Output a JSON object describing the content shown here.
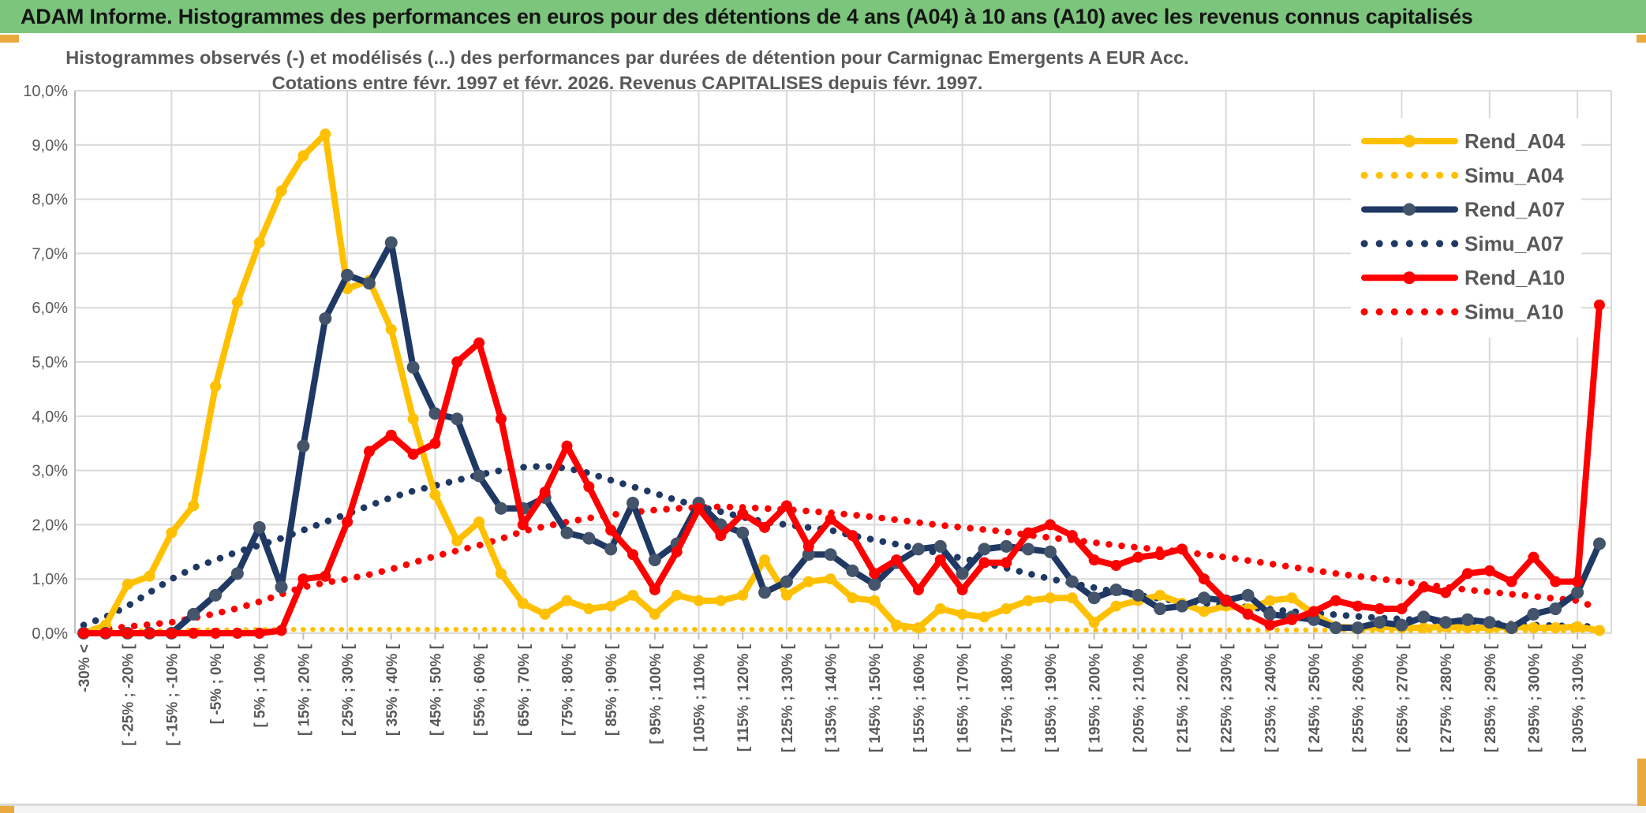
{
  "header": {
    "title": "ADAM Informe. Histogrammes des performances en euros pour des détentions de 4 ans (A04) à 10 ans (A10) avec les revenus connus capitalisés"
  },
  "colors": {
    "titlebar_green": "#7CC57C",
    "gold_accent": "#E9A93C",
    "series_yellow": "#FFC000",
    "series_navy": "#1F3864",
    "navy_marker_gray": "#44546A",
    "series_red": "#FF0000",
    "grid_gray": "#D9D9D9",
    "axis_gray": "#BFBFBF",
    "text_gray": "#595959"
  },
  "chart_data": {
    "type": "line",
    "title_line1": "Histogrammes observés (-) et modélisés (...) des performances par durées de détention pour Carmignac Emergents A EUR Acc.",
    "title_line2": "Cotations entre févr. 1997 et févr. 2026. Revenus CAPITALISES depuis févr. 1997.",
    "grid": "on",
    "legend_position": "top-right",
    "ylim": [
      0,
      10
    ],
    "y_tick_labels": [
      "0,0%",
      "1,0%",
      "2,0%",
      "3,0%",
      "4,0%",
      "5,0%",
      "6,0%",
      "7,0%",
      "8,0%",
      "9,0%",
      "10,0%"
    ],
    "x_bin_width_pct": 5,
    "x_labels_every_2_bins": [
      "-30% <",
      "[ -25% ; -20% [",
      "[ -15% ; -10% [",
      "[ -5% ; 0% [",
      "[ 5% ; 10% [",
      "[ 15% ; 20% [",
      "[ 25% ; 30% [",
      "[ 35% ; 40% [",
      "[ 45% ; 50% [",
      "[ 55% ; 60% [",
      "[ 65% ; 70% [",
      "[ 75% ; 80% [",
      "[ 85% ; 90% [",
      "[ 95% ; 100% [",
      "[ 105% ; 110% [",
      "[ 115% ; 120% [",
      "[ 125% ; 130% [",
      "[ 135% ; 140% [",
      "[ 145% ; 150% [",
      "[ 155% ; 160% [",
      "[ 165% ; 170% [",
      "[ 175% ; 180% [",
      "[ 185% ; 190% [",
      "[ 195% ; 200% [",
      "[ 205% ; 210% [",
      "[ 215% ; 220% [",
      "[ 225% ; 230% [",
      "[ 235% ; 240% [",
      "[ 245% ; 250% [",
      "[ 255% ; 260% [",
      "[ 265% ; 270% [",
      "[ 275% ; 280% [",
      "[ 285% ; 290% [",
      "[ 295% ; 300% [",
      "[ 305% ; 310% ["
    ],
    "n_points": 70,
    "series": [
      {
        "name": "Rend_A04",
        "style": "solid",
        "color": "#FFC000",
        "marker_color": "#FFC000",
        "values": [
          0,
          0.15,
          0.9,
          1.05,
          1.85,
          2.35,
          4.55,
          6.1,
          7.2,
          8.15,
          8.8,
          9.2,
          6.35,
          6.5,
          5.6,
          3.95,
          2.55,
          1.7,
          2.05,
          1.1,
          0.55,
          0.35,
          0.6,
          0.45,
          0.5,
          0.7,
          0.35,
          0.7,
          0.6,
          0.6,
          0.7,
          1.35,
          0.7,
          0.95,
          1.0,
          0.65,
          0.6,
          0.15,
          0.1,
          0.45,
          0.35,
          0.3,
          0.45,
          0.6,
          0.65,
          0.65,
          0.2,
          0.5,
          0.6,
          0.7,
          0.55,
          0.4,
          0.5,
          0.45,
          0.6,
          0.65,
          0.35,
          0.12,
          0.1,
          0.12,
          0.1,
          0.1,
          0.12,
          0.1,
          0.1,
          0.12,
          0.1,
          0.1,
          0.12,
          0.05
        ]
      },
      {
        "name": "Simu_A04",
        "style": "dotted",
        "color": "#FFC000",
        "values": [
          0.02,
          0.03,
          0.04,
          0.05,
          0.05,
          0.06,
          0.06,
          0.06,
          0.07,
          0.07,
          0.07,
          0.07,
          0.07,
          0.07,
          0.07,
          0.07,
          0.07,
          0.07,
          0.07,
          0.07,
          0.07,
          0.07,
          0.07,
          0.07,
          0.07,
          0.07,
          0.07,
          0.07,
          0.07,
          0.07,
          0.07,
          0.07,
          0.07,
          0.07,
          0.07,
          0.07,
          0.07,
          0.07,
          0.07,
          0.07,
          0.07,
          0.07,
          0.07,
          0.07,
          0.07,
          0.06,
          0.06,
          0.06,
          0.06,
          0.06,
          0.06,
          0.06,
          0.06,
          0.06,
          0.06,
          0.06,
          0.06,
          0.06,
          0.05,
          0.05,
          0.05,
          0.05,
          0.05,
          0.05,
          0.05,
          0.05,
          0.05,
          0.05,
          0.05,
          0.05
        ]
      },
      {
        "name": "Rend_A07",
        "style": "solid",
        "color": "#1F3864",
        "marker_color": "#44546A",
        "values": [
          0,
          0,
          0,
          0,
          0,
          0.35,
          0.7,
          1.1,
          1.95,
          0.85,
          3.45,
          5.8,
          6.6,
          6.45,
          7.2,
          4.9,
          4.05,
          3.95,
          2.9,
          2.3,
          2.3,
          2.5,
          1.85,
          1.75,
          1.55,
          2.4,
          1.35,
          1.65,
          2.4,
          2.0,
          1.85,
          0.75,
          0.95,
          1.45,
          1.45,
          1.15,
          0.9,
          1.3,
          1.55,
          1.6,
          1.1,
          1.55,
          1.6,
          1.55,
          1.5,
          0.95,
          0.65,
          0.8,
          0.7,
          0.45,
          0.5,
          0.65,
          0.6,
          0.7,
          0.35,
          0.3,
          0.25,
          0.1,
          0.1,
          0.2,
          0.15,
          0.3,
          0.2,
          0.25,
          0.2,
          0.1,
          0.35,
          0.45,
          0.75,
          1.65
        ]
      },
      {
        "name": "Simu_A07",
        "style": "dotted",
        "color": "#1F3864",
        "values": [
          0.15,
          0.3,
          0.5,
          0.75,
          1.0,
          1.2,
          1.35,
          1.5,
          1.62,
          1.75,
          1.9,
          2.05,
          2.2,
          2.35,
          2.5,
          2.62,
          2.72,
          2.82,
          2.92,
          3.0,
          3.06,
          3.08,
          3.04,
          2.95,
          2.82,
          2.7,
          2.58,
          2.45,
          2.34,
          2.24,
          2.14,
          2.05,
          2.0,
          1.95,
          1.9,
          1.8,
          1.72,
          1.64,
          1.56,
          1.47,
          1.38,
          1.29,
          1.2,
          1.1,
          1.0,
          0.92,
          0.84,
          0.76,
          0.7,
          0.64,
          0.58,
          0.55,
          0.52,
          0.48,
          0.44,
          0.4,
          0.37,
          0.34,
          0.31,
          0.28,
          0.26,
          0.24,
          0.22,
          0.2,
          0.18,
          0.17,
          0.15,
          0.14,
          0.13,
          0.12
        ]
      },
      {
        "name": "Rend_A10",
        "style": "solid",
        "color": "#FF0000",
        "marker_color": "#FF0000",
        "values": [
          0,
          0,
          0,
          0,
          0,
          0,
          0,
          0,
          0,
          0.05,
          1.0,
          1.05,
          2.05,
          3.35,
          3.65,
          3.3,
          3.5,
          5.0,
          5.35,
          3.95,
          2.0,
          2.6,
          3.45,
          2.7,
          1.9,
          1.45,
          0.8,
          1.5,
          2.3,
          1.8,
          2.2,
          1.95,
          2.35,
          1.6,
          2.1,
          1.8,
          1.1,
          1.35,
          0.8,
          1.35,
          0.8,
          1.3,
          1.3,
          1.85,
          2.0,
          1.8,
          1.35,
          1.25,
          1.4,
          1.45,
          1.55,
          1.0,
          0.6,
          0.35,
          0.15,
          0.25,
          0.4,
          0.6,
          0.5,
          0.45,
          0.45,
          0.85,
          0.75,
          1.1,
          1.15,
          0.95,
          1.4,
          0.95,
          0.95,
          6.05
        ]
      },
      {
        "name": "Simu_A10",
        "style": "dotted",
        "color": "#FF0000",
        "values": [
          0.05,
          0.08,
          0.12,
          0.16,
          0.2,
          0.28,
          0.36,
          0.46,
          0.58,
          0.72,
          0.85,
          0.93,
          1.0,
          1.08,
          1.18,
          1.3,
          1.42,
          1.52,
          1.62,
          1.74,
          1.88,
          1.97,
          2.05,
          2.12,
          2.18,
          2.23,
          2.27,
          2.3,
          2.32,
          2.33,
          2.32,
          2.3,
          2.28,
          2.25,
          2.22,
          2.18,
          2.14,
          2.09,
          2.04,
          1.99,
          1.95,
          1.91,
          1.87,
          1.81,
          1.76,
          1.72,
          1.67,
          1.62,
          1.58,
          1.54,
          1.5,
          1.45,
          1.4,
          1.34,
          1.28,
          1.22,
          1.16,
          1.1,
          1.05,
          1.0,
          0.95,
          0.9,
          0.85,
          0.8,
          0.76,
          0.72,
          0.68,
          0.64,
          0.6,
          0.45
        ]
      }
    ]
  }
}
